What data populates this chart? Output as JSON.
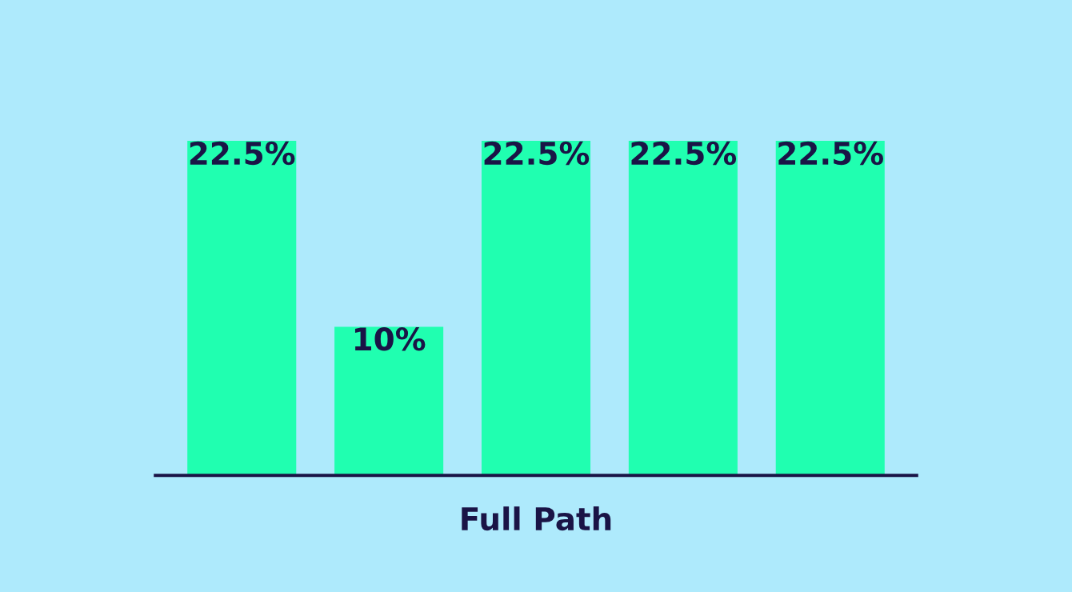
{
  "chart_data": {
    "type": "bar",
    "xlabel": "Full Path",
    "categories": [
      null,
      null,
      null,
      null,
      null
    ],
    "values": [
      22.5,
      10,
      22.5,
      22.5,
      22.5
    ],
    "value_labels": [
      "22.5%",
      "10%",
      "22.5%",
      "22.5%",
      "22.5%"
    ],
    "color": "#20ffb0",
    "tick_labels": false,
    "grid": false,
    "legend": false
  }
}
